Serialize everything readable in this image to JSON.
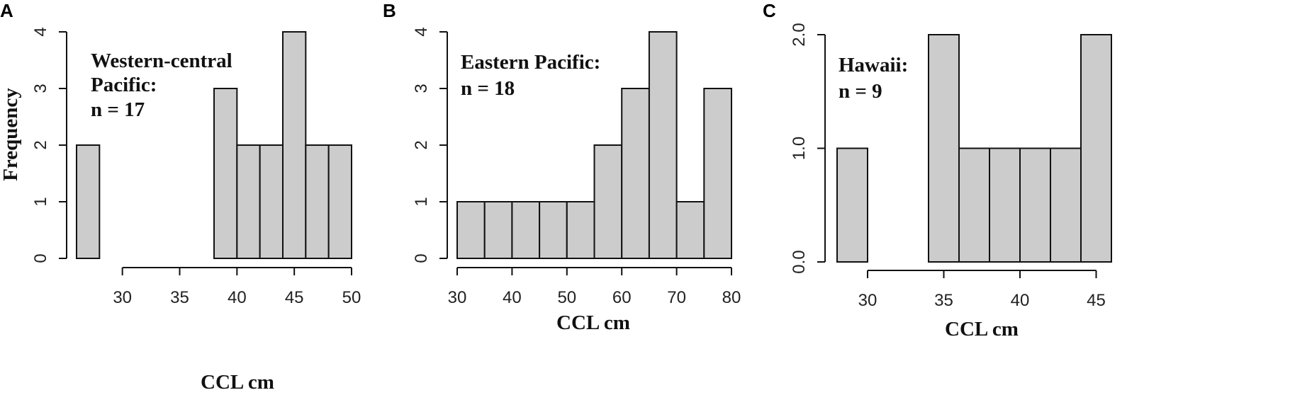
{
  "figure": {
    "panels": [
      {
        "letter": "A",
        "annotation_lines": [
          "Western-central",
          "Pacific:",
          "n = 17"
        ]
      },
      {
        "letter": "B",
        "annotation_lines": [
          "Eastern Pacific:",
          "n = 18"
        ]
      },
      {
        "letter": "C",
        "annotation_lines": [
          "Hawaii:",
          "n = 9"
        ]
      }
    ]
  },
  "chart_data": [
    {
      "type": "bar",
      "panel": "A",
      "bin_width": 2,
      "bins": [
        [
          26,
          28
        ],
        [
          28,
          30
        ],
        [
          30,
          32
        ],
        [
          32,
          34
        ],
        [
          34,
          36
        ],
        [
          36,
          38
        ],
        [
          38,
          40
        ],
        [
          40,
          42
        ],
        [
          42,
          44
        ],
        [
          44,
          46
        ],
        [
          46,
          48
        ],
        [
          48,
          50
        ]
      ],
      "values": [
        2,
        0,
        0,
        0,
        0,
        0,
        3,
        2,
        2,
        4,
        2,
        2
      ],
      "xlabel": "CCL cm",
      "ylabel": "Frequency",
      "xlim": [
        26,
        50
      ],
      "ylim": [
        0,
        4
      ],
      "x_ticks": [
        30,
        35,
        40,
        45,
        50
      ],
      "x_tick_labels": [
        "30",
        "35",
        "40",
        "45",
        "50"
      ],
      "x_axis_range": [
        30,
        50
      ],
      "y_ticks": [
        0,
        1,
        2,
        3,
        4
      ],
      "y_tick_labels": [
        "0",
        "1",
        "2",
        "3",
        "4"
      ],
      "annotation": "Western-central Pacific: n = 17"
    },
    {
      "type": "bar",
      "panel": "B",
      "bin_width": 5,
      "bins": [
        [
          30,
          35
        ],
        [
          35,
          40
        ],
        [
          40,
          45
        ],
        [
          45,
          50
        ],
        [
          50,
          55
        ],
        [
          55,
          60
        ],
        [
          60,
          65
        ],
        [
          65,
          70
        ],
        [
          70,
          75
        ],
        [
          75,
          80
        ]
      ],
      "values": [
        1,
        1,
        1,
        1,
        1,
        2,
        3,
        4,
        1,
        3
      ],
      "xlabel": "CCL cm",
      "ylabel": "",
      "xlim": [
        30,
        80
      ],
      "ylim": [
        0,
        4
      ],
      "x_ticks": [
        30,
        40,
        50,
        60,
        70,
        80
      ],
      "x_tick_labels": [
        "30",
        "40",
        "50",
        "60",
        "70",
        "80"
      ],
      "x_axis_range": [
        30,
        80
      ],
      "y_ticks": [
        0,
        1,
        2,
        3,
        4
      ],
      "y_tick_labels": [
        "0",
        "1",
        "2",
        "3",
        "4"
      ],
      "annotation": "Eastern Pacific: n = 18"
    },
    {
      "type": "bar",
      "panel": "C",
      "bin_width": 2,
      "bins": [
        [
          28,
          30
        ],
        [
          30,
          32
        ],
        [
          32,
          34
        ],
        [
          34,
          36
        ],
        [
          36,
          38
        ],
        [
          38,
          40
        ],
        [
          40,
          42
        ],
        [
          42,
          44
        ],
        [
          44,
          46
        ]
      ],
      "values": [
        1,
        0,
        0,
        2,
        1,
        1,
        1,
        1,
        2
      ],
      "xlabel": "CCL cm",
      "ylabel": "",
      "xlim": [
        28,
        46
      ],
      "ylim": [
        0,
        2
      ],
      "x_ticks": [
        30,
        35,
        40,
        45
      ],
      "x_tick_labels": [
        "30",
        "35",
        "40",
        "45"
      ],
      "x_axis_range": [
        30,
        45
      ],
      "y_ticks": [
        0,
        1,
        2
      ],
      "y_tick_labels": [
        "0.0",
        "1.0",
        "2.0"
      ],
      "annotation": "Hawaii: n = 9"
    }
  ]
}
